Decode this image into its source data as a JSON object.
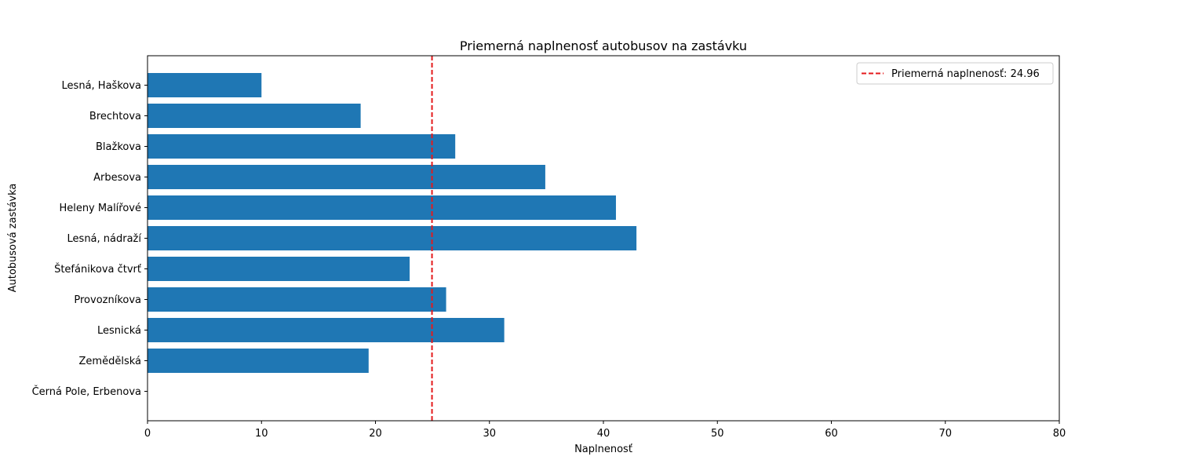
{
  "chart_data": {
    "type": "bar",
    "orientation": "horizontal",
    "title": "Priemerná naplnenosť autobusov na zastávku",
    "xlabel": "Naplnenosť",
    "ylabel": "Autobusová zastávka",
    "xlim": [
      0,
      80
    ],
    "x_ticks": [
      0,
      10,
      20,
      30,
      40,
      50,
      60,
      70,
      80
    ],
    "categories": [
      "Lesná, Haškova",
      "Brechtova",
      "Blažkova",
      "Arbesova",
      "Heleny Malířové",
      "Lesná, nádraží",
      "Štefánikova čtvrť",
      "Provozníkova",
      "Lesnická",
      "Zemědělská",
      "Černá Pole, Erbenova"
    ],
    "values": [
      10,
      18.7,
      27,
      34.9,
      41.1,
      42.9,
      23,
      26.2,
      31.3,
      19.4,
      0
    ],
    "bar_color": "#1f77b4",
    "reference_line": {
      "value": 24.96,
      "color": "#e41a1c",
      "style": "dashed",
      "label": "Priemerná naplnenosť: 24.96"
    },
    "legend_position": "top-right",
    "grid": false
  }
}
